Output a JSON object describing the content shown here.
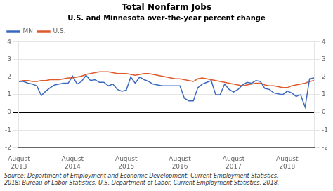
{
  "chart_data": {
    "type": "line",
    "title": "Total Nonfarm Jobs",
    "subtitle": "U.S. and Minnesota over-the-year percent change",
    "annotations": [
      "Source: Department of Employment and Economic Development, Current Employment Statistics,\n2018; Bureau of Labor Statistics, U.S. Department of Labor, Current Employment Statistics, 2018."
    ],
    "categories": [
      "August\n2013",
      null,
      null,
      null,
      null,
      null,
      null,
      null,
      null,
      null,
      null,
      null,
      "August\n2014",
      null,
      null,
      null,
      null,
      null,
      null,
      null,
      null,
      null,
      null,
      null,
      "August\n2015",
      null,
      null,
      null,
      null,
      null,
      null,
      null,
      null,
      null,
      null,
      null,
      "August\n2016",
      null,
      null,
      null,
      null,
      null,
      null,
      null,
      null,
      null,
      null,
      null,
      "August\n2017",
      null,
      null,
      null,
      null,
      null,
      null,
      null,
      null,
      null,
      null,
      null,
      "August\n2018",
      null,
      null,
      null,
      null,
      null,
      null
    ],
    "series": [
      {
        "name": "MN",
        "color": "#3a6abf",
        "values": [
          1.75,
          1.75,
          1.65,
          1.6,
          1.5,
          0.95,
          1.2,
          1.4,
          1.55,
          1.6,
          1.65,
          1.65,
          2.05,
          1.6,
          1.75,
          2.1,
          1.8,
          1.85,
          1.7,
          1.7,
          1.5,
          1.6,
          1.3,
          1.2,
          1.25,
          2.0,
          1.65,
          2.0,
          1.85,
          1.75,
          1.6,
          1.55,
          1.5,
          1.5,
          1.5,
          1.5,
          1.5,
          0.8,
          0.65,
          0.65,
          1.4,
          1.6,
          1.7,
          1.8,
          1.0,
          1.0,
          1.6,
          1.3,
          1.15,
          1.3,
          1.55,
          1.7,
          1.65,
          1.8,
          1.75,
          1.35,
          1.3,
          1.1,
          1.05,
          1.0,
          1.2,
          1.1,
          0.9,
          1.0,
          0.3,
          1.9,
          1.95
        ]
      },
      {
        "name": "U.S.",
        "color": "#e05a2b",
        "values": [
          1.75,
          1.8,
          1.8,
          1.75,
          1.75,
          1.8,
          1.8,
          1.85,
          1.85,
          1.85,
          1.9,
          1.95,
          1.95,
          2.0,
          2.05,
          2.15,
          2.2,
          2.25,
          2.3,
          2.3,
          2.3,
          2.25,
          2.2,
          2.2,
          2.2,
          2.15,
          2.1,
          2.15,
          2.2,
          2.2,
          2.15,
          2.1,
          2.05,
          2.0,
          1.95,
          1.9,
          1.9,
          1.85,
          1.8,
          1.75,
          1.9,
          1.95,
          1.9,
          1.85,
          1.8,
          1.75,
          1.7,
          1.65,
          1.6,
          1.55,
          1.5,
          1.55,
          1.6,
          1.65,
          1.65,
          1.55,
          1.5,
          1.5,
          1.45,
          1.4,
          1.4,
          1.5,
          1.55,
          1.6,
          1.65,
          1.75,
          1.8
        ]
      }
    ],
    "ylim": [
      -2,
      4
    ],
    "yticks": [
      -2,
      -1,
      0,
      1,
      2,
      3,
      4
    ],
    "y2lim": [
      -2,
      4
    ],
    "y2ticks": [
      -2,
      -1,
      0,
      1,
      2,
      3,
      4
    ],
    "grid": true,
    "legend": "upper left"
  }
}
